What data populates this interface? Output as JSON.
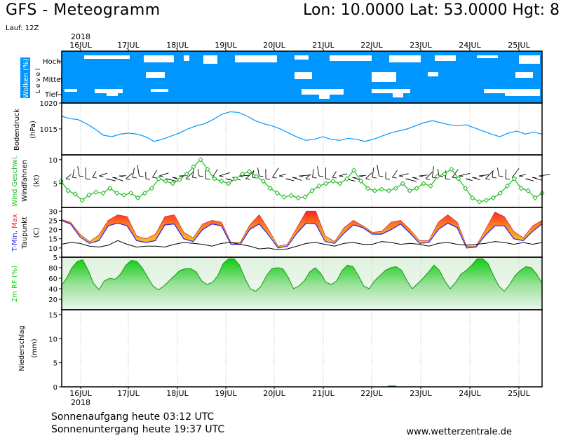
{
  "header": {
    "title": "GFS - Meteogramm",
    "location": "Lon: 10.0000 Lat: 53.0000 Hgt: 8",
    "run": "Lauf: 12Z"
  },
  "footer": {
    "sunrise": "Sonnenaufgang heute 03:12 UTC",
    "sunset": "Sonnenuntergang heute 19:37 UTC",
    "website": "www.wetterzentrale.de"
  },
  "colors": {
    "cloud_sky": "#0096ff",
    "pressure": "#0096ff",
    "wind_speed": "#22bb22",
    "temp_min": "#2222ee",
    "temp_max": "#ee2222",
    "dewpoint": "#000000",
    "humidity": "#11cc11"
  },
  "chart_data": {
    "type": "line",
    "year": "2018",
    "days": [
      "16JUL",
      "17JUL",
      "18JUL",
      "19JUL",
      "20JUL",
      "21JUL",
      "22JUL",
      "23JUL",
      "24JUL",
      "25JUL"
    ],
    "panels": [
      {
        "id": "clouds",
        "ylabel": "Wolken (%)",
        "ylabel2": "L e v e l",
        "levels": [
          "Hoch",
          "Mittel",
          "Tief"
        ]
      },
      {
        "id": "pressure",
        "ylabel": "Bodendruck",
        "unit": "(hPa)",
        "ylim": [
          1010,
          1020
        ],
        "ticks": [
          "1015",
          "1020"
        ],
        "series": [
          {
            "values": [
              1017.5,
              1017.0,
              1016.8,
              1016.0,
              1015.0,
              1013.8,
              1013.5,
              1014.0,
              1014.2,
              1014.0,
              1013.5,
              1012.6,
              1013.0,
              1013.6,
              1014.2,
              1015.0,
              1015.6,
              1016.0,
              1016.8,
              1017.8,
              1018.3,
              1018.2,
              1017.5,
              1016.6,
              1016.0,
              1015.6,
              1015.0,
              1014.2,
              1013.4,
              1012.8,
              1013.0,
              1013.5,
              1013.0,
              1012.8,
              1013.2,
              1013.0,
              1012.6,
              1013.0,
              1013.6,
              1014.2,
              1014.6,
              1015.0,
              1015.6,
              1016.2,
              1016.6,
              1016.2,
              1015.8,
              1015.6,
              1015.8,
              1015.2,
              1014.6,
              1014.0,
              1013.5,
              1014.2,
              1014.6,
              1014.0,
              1014.4,
              1014.0
            ]
          }
        ]
      },
      {
        "id": "wind",
        "ylabel": "Wind Geschwi.",
        "ylabel2": "Windfahnen",
        "unit": "(kt)",
        "ylim": [
          0,
          11
        ],
        "ticks": [
          "5",
          "10"
        ],
        "series": [
          {
            "values": [
              5.5,
              3.5,
              2.8,
              1.5,
              2.6,
              3.2,
              3.0,
              4.0,
              3.0,
              2.6,
              3.0,
              2.0,
              3.0,
              4.0,
              6.0,
              5.5,
              5.0,
              5.8,
              7.0,
              8.5,
              10.0,
              8.0,
              6.0,
              5.5,
              5.0,
              6.0,
              7.0,
              7.5,
              6.5,
              5.5,
              4.0,
              3.0,
              2.2,
              2.5,
              2.0,
              2.2,
              3.5,
              4.5,
              5.0,
              5.5,
              5.0,
              6.0,
              7.8,
              5.5,
              4.0,
              3.5,
              3.8,
              3.5,
              4.0,
              5.0,
              3.5,
              4.0,
              5.0,
              4.5,
              6.5,
              7.0,
              8.0,
              6.0,
              4.0,
              2.0,
              1.2,
              1.5,
              2.0,
              3.0,
              4.5,
              6.0,
              4.0,
              3.5,
              2.0,
              3.0
            ]
          }
        ]
      },
      {
        "id": "temp",
        "ylabel": "T-Min, Max",
        "ylabel2": "Taupunkt",
        "unit": "(C)",
        "ylim": [
          5,
          32
        ],
        "ticks": [
          "5",
          "10",
          "15",
          "20",
          "25",
          "30"
        ],
        "series": [
          {
            "name": "Max",
            "values": [
              25.5,
              24.0,
              17.5,
              13.5,
              17.0,
              25.0,
              28.0,
              27.0,
              16.5,
              15.0,
              17.5,
              27.0,
              28.0,
              18.5,
              15.5,
              23.0,
              25.0,
              24.0,
              13.0,
              13.0,
              22.5,
              28.0,
              20.0,
              11.0,
              12.0,
              21.0,
              30.0,
              30.0,
              16.5,
              13.5,
              21.0,
              25.0,
              22.0,
              18.5,
              19.0,
              24.0,
              25.0,
              20.0,
              14.0,
              14.0,
              24.0,
              28.0,
              24.0,
              11.0,
              11.0,
              20.0,
              29.5,
              27.0,
              19.0,
              15.5,
              22.0,
              25.0
            ]
          },
          {
            "name": "Min",
            "values": [
              25.0,
              23.0,
              16.0,
              12.5,
              14.0,
              22.0,
              23.5,
              22.0,
              14.0,
              13.0,
              14.0,
              22.5,
              23.0,
              15.0,
              13.5,
              20.0,
              23.0,
              22.0,
              12.0,
              12.0,
              20.0,
              23.0,
              17.0,
              10.0,
              11.0,
              18.0,
              23.5,
              23.0,
              13.5,
              12.5,
              18.0,
              22.5,
              21.0,
              17.5,
              17.5,
              20.0,
              23.0,
              18.0,
              12.5,
              13.0,
              20.0,
              23.5,
              21.0,
              10.0,
              10.5,
              17.0,
              22.0,
              22.0,
              15.0,
              14.0,
              19.0,
              23.0
            ]
          },
          {
            "name": "Taupunkt",
            "values": [
              12.0,
              13.0,
              12.5,
              11.0,
              10.5,
              11.5,
              14.0,
              12.0,
              10.5,
              11.0,
              11.0,
              10.5,
              12.0,
              13.0,
              12.5,
              12.0,
              11.0,
              12.5,
              13.0,
              12.0,
              11.0,
              9.5,
              10.0,
              9.0,
              9.5,
              11.0,
              12.5,
              13.0,
              12.0,
              11.0,
              12.5,
              13.0,
              12.0,
              12.0,
              13.5,
              13.0,
              12.0,
              12.5,
              12.0,
              11.0,
              12.5,
              13.0,
              12.0,
              11.5,
              12.0,
              12.5,
              13.5,
              13.0,
              12.0,
              13.0,
              12.0,
              13.0
            ]
          }
        ]
      },
      {
        "id": "humidity",
        "ylabel": "2m RF (%)",
        "ylim": [
          0,
          100
        ],
        "ticks": [
          "20",
          "40",
          "60",
          "80"
        ],
        "series": [
          {
            "values": [
              45,
              60,
              80,
              92,
              95,
              75,
              50,
              38,
              55,
              60,
              58,
              68,
              85,
              94,
              92,
              80,
              62,
              45,
              38,
              45,
              55,
              65,
              75,
              78,
              78,
              72,
              55,
              48,
              52,
              65,
              88,
              97,
              97,
              85,
              60,
              40,
              35,
              45,
              65,
              78,
              80,
              78,
              62,
              40,
              45,
              55,
              72,
              80,
              70,
              52,
              48,
              55,
              75,
              85,
              82,
              65,
              45,
              40,
              55,
              65,
              75,
              80,
              82,
              75,
              55,
              40,
              50,
              60,
              72,
              85,
              75,
              55,
              40,
              52,
              68,
              75,
              85,
              97,
              97,
              88,
              65,
              45,
              35,
              48,
              65,
              75,
              82,
              80,
              68,
              50
            ]
          }
        ]
      },
      {
        "id": "precip",
        "ylabel": "Niederschlag",
        "unit": "(mm)",
        "ylim": [
          0,
          16
        ],
        "ticks": [
          "0",
          "5",
          "10",
          "15"
        ]
      }
    ]
  }
}
